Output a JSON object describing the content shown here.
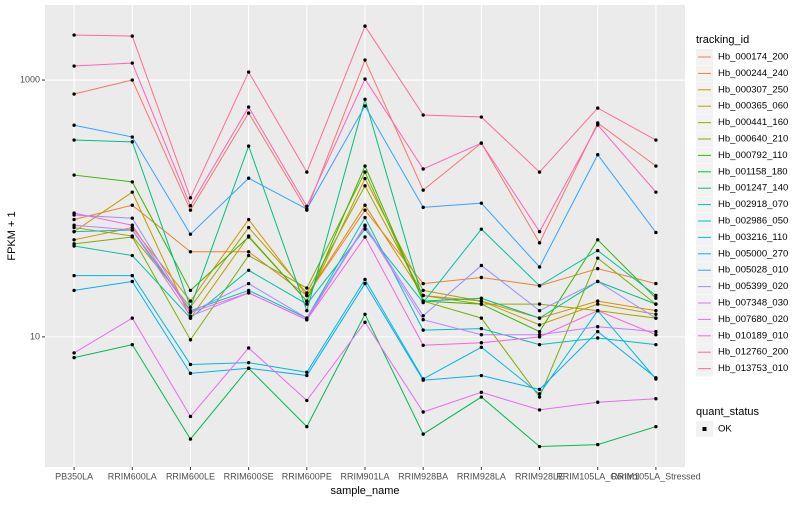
{
  "chart_data": {
    "type": "line",
    "x_label": "sample_name",
    "y_label": "FPKM + 1",
    "categories": [
      "PB350LA",
      "RRIM600LA",
      "RRIM600LE",
      "RRIM600SE",
      "RRIM600PE",
      "RRIM901LA",
      "RRIM928BA",
      "RRIM928LA",
      "RRIM928LE",
      "RRIM105LA_Control",
      "RRIM105LA_Stressed"
    ],
    "log_y": true,
    "ylim": [
      0.97,
      3840
    ],
    "yticks": [
      10,
      1000
    ],
    "grid": true,
    "legend_title": "tracking_id",
    "legend_position": "right",
    "point_color": "#000000",
    "shape_legend": {
      "title": "quant_status",
      "labels": [
        "OK"
      ]
    },
    "series": [
      {
        "name": "Hb_000174_200",
        "color": "#F8766D",
        "values": [
          778,
          1000,
          97,
          553,
          97,
          1431,
          139,
          323,
          54,
          463,
          214
        ]
      },
      {
        "name": "Hb_000244_240",
        "color": "#EA8331",
        "values": [
          82,
          106,
          46,
          46,
          21,
          97,
          26,
          29,
          25,
          34,
          26
        ]
      },
      {
        "name": "Hb_000307_250",
        "color": "#D89000",
        "values": [
          57,
          71,
          19,
          82,
          21,
          106,
          21,
          19,
          14,
          19,
          16
        ]
      },
      {
        "name": "Hb_000365_060",
        "color": "#C09B00",
        "values": [
          66,
          134,
          14,
          61,
          19,
          171,
          23,
          19,
          12.4,
          18,
          15
        ]
      },
      {
        "name": "Hb_000441_160",
        "color": "#A3A500",
        "values": [
          71,
          61,
          17,
          71,
          22,
          150,
          21,
          18,
          18,
          16,
          14
        ]
      },
      {
        "name": "Hb_000640_210",
        "color": "#7CAE00",
        "values": [
          53,
          60,
          9.5,
          43,
          24,
          192,
          19,
          14,
          3.4,
          41,
          18
        ]
      },
      {
        "name": "Hb_000792_110",
        "color": "#39B600",
        "values": [
          182,
          161,
          23,
          60,
          19,
          214,
          19,
          18,
          11,
          57,
          20
        ]
      },
      {
        "name": "Hb_001158_180",
        "color": "#00BB4E",
        "values": [
          6.9,
          8.7,
          1.6,
          5.7,
          2,
          15,
          1.75,
          3.4,
          1.4,
          1.45,
          2
        ]
      },
      {
        "name": "Hb_001247_140",
        "color": "#00BF7D",
        "values": [
          341,
          330,
          17,
          306,
          16,
          707,
          19,
          20,
          14,
          27,
          18
        ]
      },
      {
        "name": "Hb_002918_070",
        "color": "#00C1A3",
        "values": [
          51,
          43,
          14,
          33,
          18,
          69,
          18.5,
          69,
          25,
          47,
          21
        ]
      },
      {
        "name": "Hb_002986_050",
        "color": "#00BFC4",
        "values": [
          66,
          68,
          16,
          23,
          14,
          85,
          11.3,
          11.6,
          8.7,
          9.8,
          8.7
        ]
      },
      {
        "name": "Hb_003216_110",
        "color": "#00BAE0",
        "values": [
          30,
          30,
          6.1,
          6.3,
          5.3,
          28,
          4.7,
          8.3,
          3.6,
          16,
          4.7
        ]
      },
      {
        "name": "Hb_005000_270",
        "color": "#00B0F6",
        "values": [
          23,
          27,
          5.2,
          5.7,
          5,
          26,
          4.6,
          5,
          3.9,
          11,
          4.8
        ]
      },
      {
        "name": "Hb_005028_010",
        "color": "#35A2FF",
        "values": [
          445,
          360,
          63,
          172,
          99,
          628,
          102,
          110,
          35,
          262,
          65
        ]
      },
      {
        "name": "Hb_005399_020",
        "color": "#9590FF",
        "values": [
          89,
          84,
          15.5,
          26,
          14,
          74,
          14.6,
          36,
          16,
          27,
          14
        ]
      },
      {
        "name": "Hb_007348_030",
        "color": "#C77CFF",
        "values": [
          74,
          68,
          14.5,
          22,
          13.6,
          73,
          13.6,
          10.4,
          10.4,
          12,
          11
        ]
      },
      {
        "name": "Hb_007680_020",
        "color": "#E76BF3",
        "values": [
          7.5,
          14,
          2.4,
          8.2,
          3.2,
          13,
          2.6,
          3.7,
          2.7,
          3.1,
          3.3
        ]
      },
      {
        "name": "Hb_010189_010",
        "color": "#FA62DB",
        "values": [
          92,
          74,
          15.5,
          22,
          13.6,
          60,
          8.6,
          9,
          10,
          16,
          10.4
        ]
      },
      {
        "name": "Hb_012760_200",
        "color": "#FF62BC",
        "values": [
          1285,
          1356,
          105,
          616,
          104,
          1018,
          203,
          323,
          66,
          447,
          134
        ]
      },
      {
        "name": "Hb_013753_010",
        "color": "#FF6C91",
        "values": [
          2240,
          2200,
          121,
          1154,
          192,
          2630,
          534,
          515,
          192,
          605,
          341
        ]
      }
    ]
  }
}
